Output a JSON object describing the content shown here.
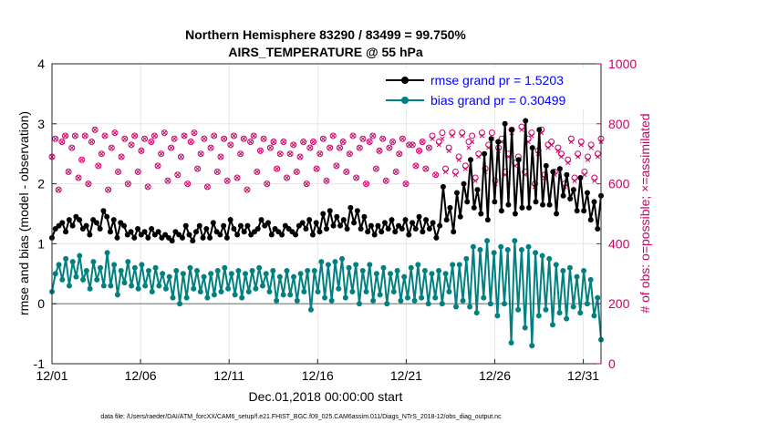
{
  "chart_data": {
    "type": "line",
    "title": "Northern Hemisphere 83290 / 83499 = 99.750%",
    "subtitle": "AIRS_TEMPERATURE @ 55 hPa",
    "xlabel": "Dec.01,2018 00:00:00 start",
    "ylabel_left": "rmse and bias (model - observation)",
    "ylabel_right": "# of obs: o=possible; ×=assimilated",
    "footer": "data file: /Users/raeder/DAI/ATM_forcXX/CAM6_setup/f.e21.FHIST_BGC.f09_025.CAM6assim.011/Diags_NTrS_2018-12/obs_diag_output.nc",
    "x_range_days": [
      0,
      31
    ],
    "y_left_range": [
      -1,
      4
    ],
    "y_right_range": [
      0,
      1000
    ],
    "x_tick_days": [
      0,
      5,
      10,
      15,
      20,
      25,
      30
    ],
    "x_tick_labels": [
      "12/01",
      "12/06",
      "12/11",
      "12/16",
      "12/21",
      "12/26",
      "12/31"
    ],
    "y_left_ticks": [
      "-1",
      "0",
      "1",
      "2",
      "3",
      "4"
    ],
    "y_right_ticks": [
      "0",
      "200",
      "400",
      "600",
      "800",
      "1000"
    ],
    "grid": true,
    "legend_position": "top-right",
    "colors": {
      "rmse": "#000000",
      "bias": "#008080",
      "obs": "#cc0066",
      "legend_text": "#0000ff",
      "zero_line": "#999999"
    },
    "series": [
      {
        "name": "rmse grand pr = 1.5203",
        "axis": "left",
        "values": [
          1.1,
          1.25,
          1.3,
          1.35,
          1.2,
          1.4,
          1.3,
          1.45,
          1.4,
          1.25,
          1.3,
          1.15,
          1.4,
          1.35,
          1.25,
          1.55,
          1.45,
          1.2,
          1.4,
          1.1,
          1.35,
          1.3,
          1.15,
          1.2,
          1.1,
          1.25,
          1.15,
          1.2,
          1.1,
          1.25,
          1.15,
          1.2,
          1.1,
          1.15,
          1.1,
          1.05,
          1.2,
          1.15,
          1.1,
          1.3,
          1.15,
          1.05,
          1.2,
          1.3,
          1.1,
          1.25,
          1.1,
          1.35,
          1.2,
          1.15,
          1.3,
          1.1,
          1.4,
          1.25,
          1.15,
          1.3,
          1.2,
          1.3,
          1.15,
          1.2,
          1.25,
          1.4,
          1.3,
          1.35,
          1.15,
          1.25,
          1.2,
          1.15,
          1.3,
          1.25,
          1.2,
          1.15,
          1.3,
          1.35,
          1.25,
          1.4,
          1.15,
          1.35,
          1.2,
          1.5,
          1.25,
          1.55,
          1.3,
          1.45,
          1.3,
          1.4,
          1.25,
          1.6,
          1.35,
          1.55,
          1.25,
          1.45,
          1.2,
          1.3,
          1.15,
          1.3,
          1.2,
          1.35,
          1.25,
          1.4,
          1.2,
          1.3,
          1.25,
          1.4,
          1.15,
          1.35,
          1.25,
          1.45,
          1.2,
          1.4,
          1.25,
          1.35,
          1.1,
          1.3,
          1.95,
          1.4,
          1.6,
          1.2,
          1.85,
          1.45,
          2.0,
          1.7,
          2.4,
          1.6,
          1.9,
          1.5,
          2.5,
          1.4,
          2.75,
          1.7,
          2.7,
          1.55,
          3.0,
          1.65,
          2.9,
          1.5,
          2.4,
          1.6,
          3.05,
          1.6,
          2.6,
          1.7,
          2.9,
          1.65,
          2.3,
          1.65,
          2.2,
          1.5,
          2.25,
          1.8,
          2.15,
          1.75,
          1.9,
          1.55,
          2.1,
          1.55,
          1.85,
          1.4,
          1.7,
          1.25,
          1.8
        ]
      },
      {
        "name": "bias grand pr = 0.30499",
        "axis": "left",
        "values": [
          0.2,
          0.5,
          0.65,
          0.4,
          0.75,
          0.3,
          0.7,
          0.45,
          0.8,
          0.4,
          0.55,
          0.25,
          0.7,
          0.4,
          0.6,
          0.3,
          0.85,
          0.3,
          0.65,
          0.15,
          0.55,
          0.35,
          0.7,
          0.3,
          0.6,
          0.25,
          0.65,
          0.3,
          0.55,
          0.2,
          0.6,
          0.3,
          0.5,
          0.25,
          0.45,
          0.1,
          0.55,
          0.0,
          0.5,
          0.1,
          0.6,
          0.25,
          0.55,
          0.2,
          0.45,
          0.1,
          0.5,
          0.15,
          0.55,
          0.2,
          0.6,
          0.25,
          0.5,
          0.15,
          0.55,
          0.1,
          0.5,
          0.2,
          0.55,
          0.25,
          0.6,
          0.3,
          0.5,
          0.2,
          0.55,
          0.05,
          0.45,
          0.15,
          0.55,
          0.15,
          0.45,
          0.05,
          0.5,
          0.2,
          0.55,
          -0.1,
          0.55,
          0.2,
          0.7,
          0.1,
          0.65,
          0.05,
          0.7,
          0.25,
          0.75,
          0.1,
          0.6,
          0.2,
          0.65,
          0.0,
          0.55,
          0.2,
          0.65,
          0.05,
          0.5,
          0.15,
          0.6,
          0.0,
          0.5,
          0.2,
          0.55,
          0.05,
          0.45,
          0.1,
          0.6,
          0.05,
          0.65,
          0.1,
          0.55,
          0.0,
          0.5,
          0.1,
          0.55,
          0.0,
          0.5,
          0.2,
          0.65,
          -0.05,
          0.65,
          0.05,
          0.75,
          -0.05,
          0.95,
          -0.15,
          0.9,
          0.1,
          1.05,
          0.0,
          0.85,
          -0.2,
          0.95,
          0.0,
          0.9,
          -0.65,
          1.05,
          -0.1,
          0.9,
          -0.4,
          0.95,
          -0.7,
          0.85,
          -0.2,
          0.8,
          -0.1,
          0.75,
          -0.35,
          0.65,
          -0.15,
          0.55,
          -0.25,
          0.6,
          -0.05,
          0.45,
          -0.15,
          0.55,
          0.0,
          0.4,
          -0.2,
          0.1,
          -0.6
        ]
      },
      {
        "name": "# of obs possible",
        "axis": "right",
        "marker": "o",
        "values": [
          690,
          750,
          580,
          740,
          760,
          640,
          720,
          760,
          620,
          680,
          760,
          600,
          740,
          780,
          660,
          700,
          760,
          580,
          720,
          770,
          640,
          690,
          750,
          600,
          730,
          760,
          640,
          710,
          750,
          590,
          740,
          760,
          660,
          700,
          770,
          610,
          720,
          750,
          630,
          690,
          760,
          600,
          740,
          770,
          650,
          700,
          750,
          590,
          720,
          760,
          640,
          690,
          750,
          610,
          730,
          760,
          620,
          700,
          750,
          580,
          740,
          760,
          640,
          710,
          750,
          600,
          720,
          740,
          650,
          700,
          740,
          620,
          700,
          730,
          640,
          690,
          740,
          600,
          720,
          740,
          650,
          700,
          750,
          610,
          720,
          760,
          660,
          720,
          740,
          640,
          700,
          760,
          620,
          720,
          750,
          600,
          740,
          760,
          650,
          710,
          750,
          610,
          720,
          740,
          640,
          700,
          750,
          600,
          730,
          730,
          660,
          710,
          740,
          650,
          720,
          760,
          630,
          740,
          770,
          650,
          720,
          770,
          640,
          690,
          770,
          660,
          740,
          760,
          620,
          700,
          770,
          650,
          730,
          770,
          610,
          720,
          750,
          640,
          700,
          780,
          670,
          690,
          790,
          640,
          750,
          770,
          600,
          710,
          780,
          630,
          730,
          740,
          640,
          720,
          700,
          600,
          680,
          750,
          620,
          700,
          740,
          640,
          690,
          730,
          620,
          700,
          750
        ]
      },
      {
        "name": "# of obs assimilated",
        "axis": "right",
        "marker": "x",
        "values": [
          690,
          750,
          580,
          740,
          760,
          640,
          720,
          760,
          620,
          680,
          760,
          600,
          740,
          780,
          660,
          700,
          760,
          580,
          720,
          770,
          640,
          690,
          750,
          600,
          730,
          760,
          640,
          710,
          750,
          590,
          740,
          760,
          660,
          700,
          770,
          610,
          720,
          750,
          630,
          690,
          760,
          600,
          740,
          770,
          650,
          700,
          750,
          590,
          720,
          760,
          640,
          690,
          750,
          610,
          730,
          760,
          620,
          700,
          750,
          580,
          740,
          760,
          640,
          710,
          750,
          600,
          720,
          740,
          650,
          700,
          740,
          620,
          700,
          730,
          640,
          690,
          740,
          600,
          720,
          740,
          650,
          700,
          750,
          610,
          720,
          760,
          660,
          720,
          740,
          640,
          700,
          760,
          620,
          720,
          750,
          600,
          740,
          760,
          650,
          710,
          750,
          610,
          720,
          740,
          640,
          700,
          750,
          600,
          730,
          730,
          660,
          710,
          740,
          650,
          720,
          750,
          630,
          730,
          750,
          640,
          710,
          760,
          630,
          680,
          760,
          650,
          720,
          740,
          610,
          690,
          760,
          640,
          720,
          750,
          600,
          710,
          740,
          630,
          690,
          770,
          660,
          680,
          780,
          630,
          740,
          760,
          590,
          700,
          770,
          620,
          720,
          730,
          630,
          710,
          690,
          590,
          670,
          740,
          610,
          690,
          730,
          630,
          680,
          720,
          610,
          690,
          740
        ]
      }
    ]
  }
}
